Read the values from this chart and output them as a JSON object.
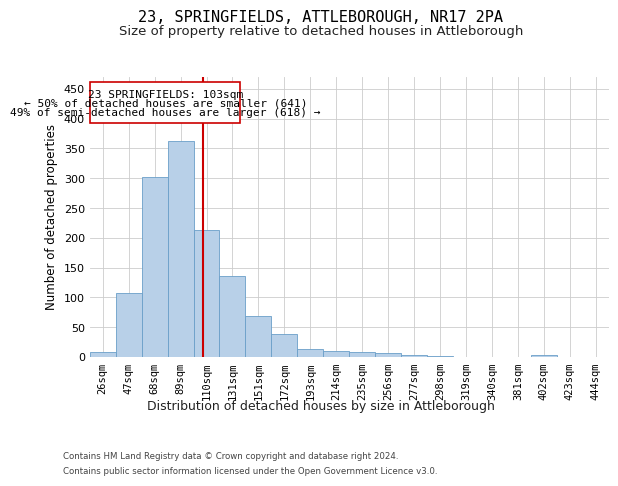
{
  "title1": "23, SPRINGFIELDS, ATTLEBOROUGH, NR17 2PA",
  "title2": "Size of property relative to detached houses in Attleborough",
  "xlabel": "Distribution of detached houses by size in Attleborough",
  "ylabel": "Number of detached properties",
  "footer1": "Contains HM Land Registry data © Crown copyright and database right 2024.",
  "footer2": "Contains public sector information licensed under the Open Government Licence v3.0.",
  "annotation_line1": "23 SPRINGFIELDS: 103sqm",
  "annotation_line2": "← 50% of detached houses are smaller (641)",
  "annotation_line3": "49% of semi-detached houses are larger (618) →",
  "bar_values": [
    8,
    108,
    302,
    362,
    213,
    136,
    68,
    38,
    13,
    10,
    9,
    6,
    3,
    2,
    0,
    0,
    0,
    3,
    0,
    0
  ],
  "bar_labels": [
    "26sqm",
    "47sqm",
    "68sqm",
    "89sqm",
    "110sqm",
    "131sqm",
    "151sqm",
    "172sqm",
    "193sqm",
    "214sqm",
    "235sqm",
    "256sqm",
    "277sqm",
    "298sqm",
    "319sqm",
    "340sqm",
    "381sqm",
    "402sqm",
    "423sqm",
    "444sqm"
  ],
  "bar_color": "#b8d0e8",
  "bar_edge_color": "#6a9fc8",
  "vline_x_bar_index": 3.85,
  "vline_color": "#cc0000",
  "ylim": [
    0,
    470
  ],
  "yticks": [
    0,
    50,
    100,
    150,
    200,
    250,
    300,
    350,
    400,
    450
  ],
  "background_color": "#ffffff",
  "grid_color": "#cccccc",
  "annotation_box_color": "#ffffff",
  "annotation_box_edge": "#cc0000",
  "title1_fontsize": 11,
  "title2_fontsize": 9.5,
  "xlabel_fontsize": 9,
  "ylabel_fontsize": 8.5,
  "annotation_fontsize": 8,
  "tick_fontsize": 7.5,
  "ytick_fontsize": 8
}
